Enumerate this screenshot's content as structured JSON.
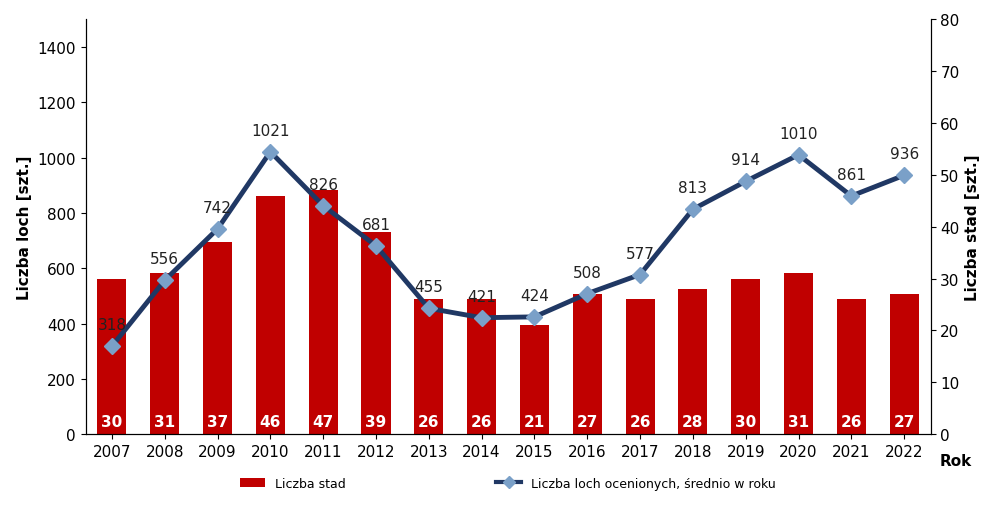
{
  "chart_data": {
    "type": "bar",
    "x_label": "Rok",
    "y_label": "Liczba loch [szt.]",
    "y2_label": "Liczba stad [szt.]",
    "categories": [
      "2007",
      "2008",
      "2009",
      "2010",
      "2011",
      "2012",
      "2013",
      "2014",
      "2015",
      "2016",
      "2017",
      "2018",
      "2019",
      "2020",
      "2021",
      "2022"
    ],
    "ylim": [
      0,
      1500
    ],
    "yticks": [
      0,
      200,
      400,
      600,
      800,
      1000,
      1200,
      1400
    ],
    "y2lim": [
      0,
      80
    ],
    "y2ticks": [
      0,
      10,
      20,
      30,
      40,
      50,
      60,
      70,
      80
    ],
    "grid": false,
    "legend": "bottom",
    "data_labels": true,
    "series": [
      {
        "name": "Liczba stad",
        "type": "bar",
        "axis": "y2",
        "color": "#c00000",
        "values": [
          30,
          31,
          37,
          46,
          47,
          39,
          26,
          26,
          21,
          27,
          26,
          28,
          30,
          31,
          26,
          27
        ]
      },
      {
        "name": "Liczba loch ocenionych, średnio w roku",
        "type": "line",
        "color": "#203864",
        "marker": "diamond",
        "values": [
          318,
          556,
          742,
          1021,
          826,
          681,
          455,
          421,
          424,
          508,
          577,
          813,
          914,
          1010,
          861,
          936
        ]
      }
    ]
  }
}
